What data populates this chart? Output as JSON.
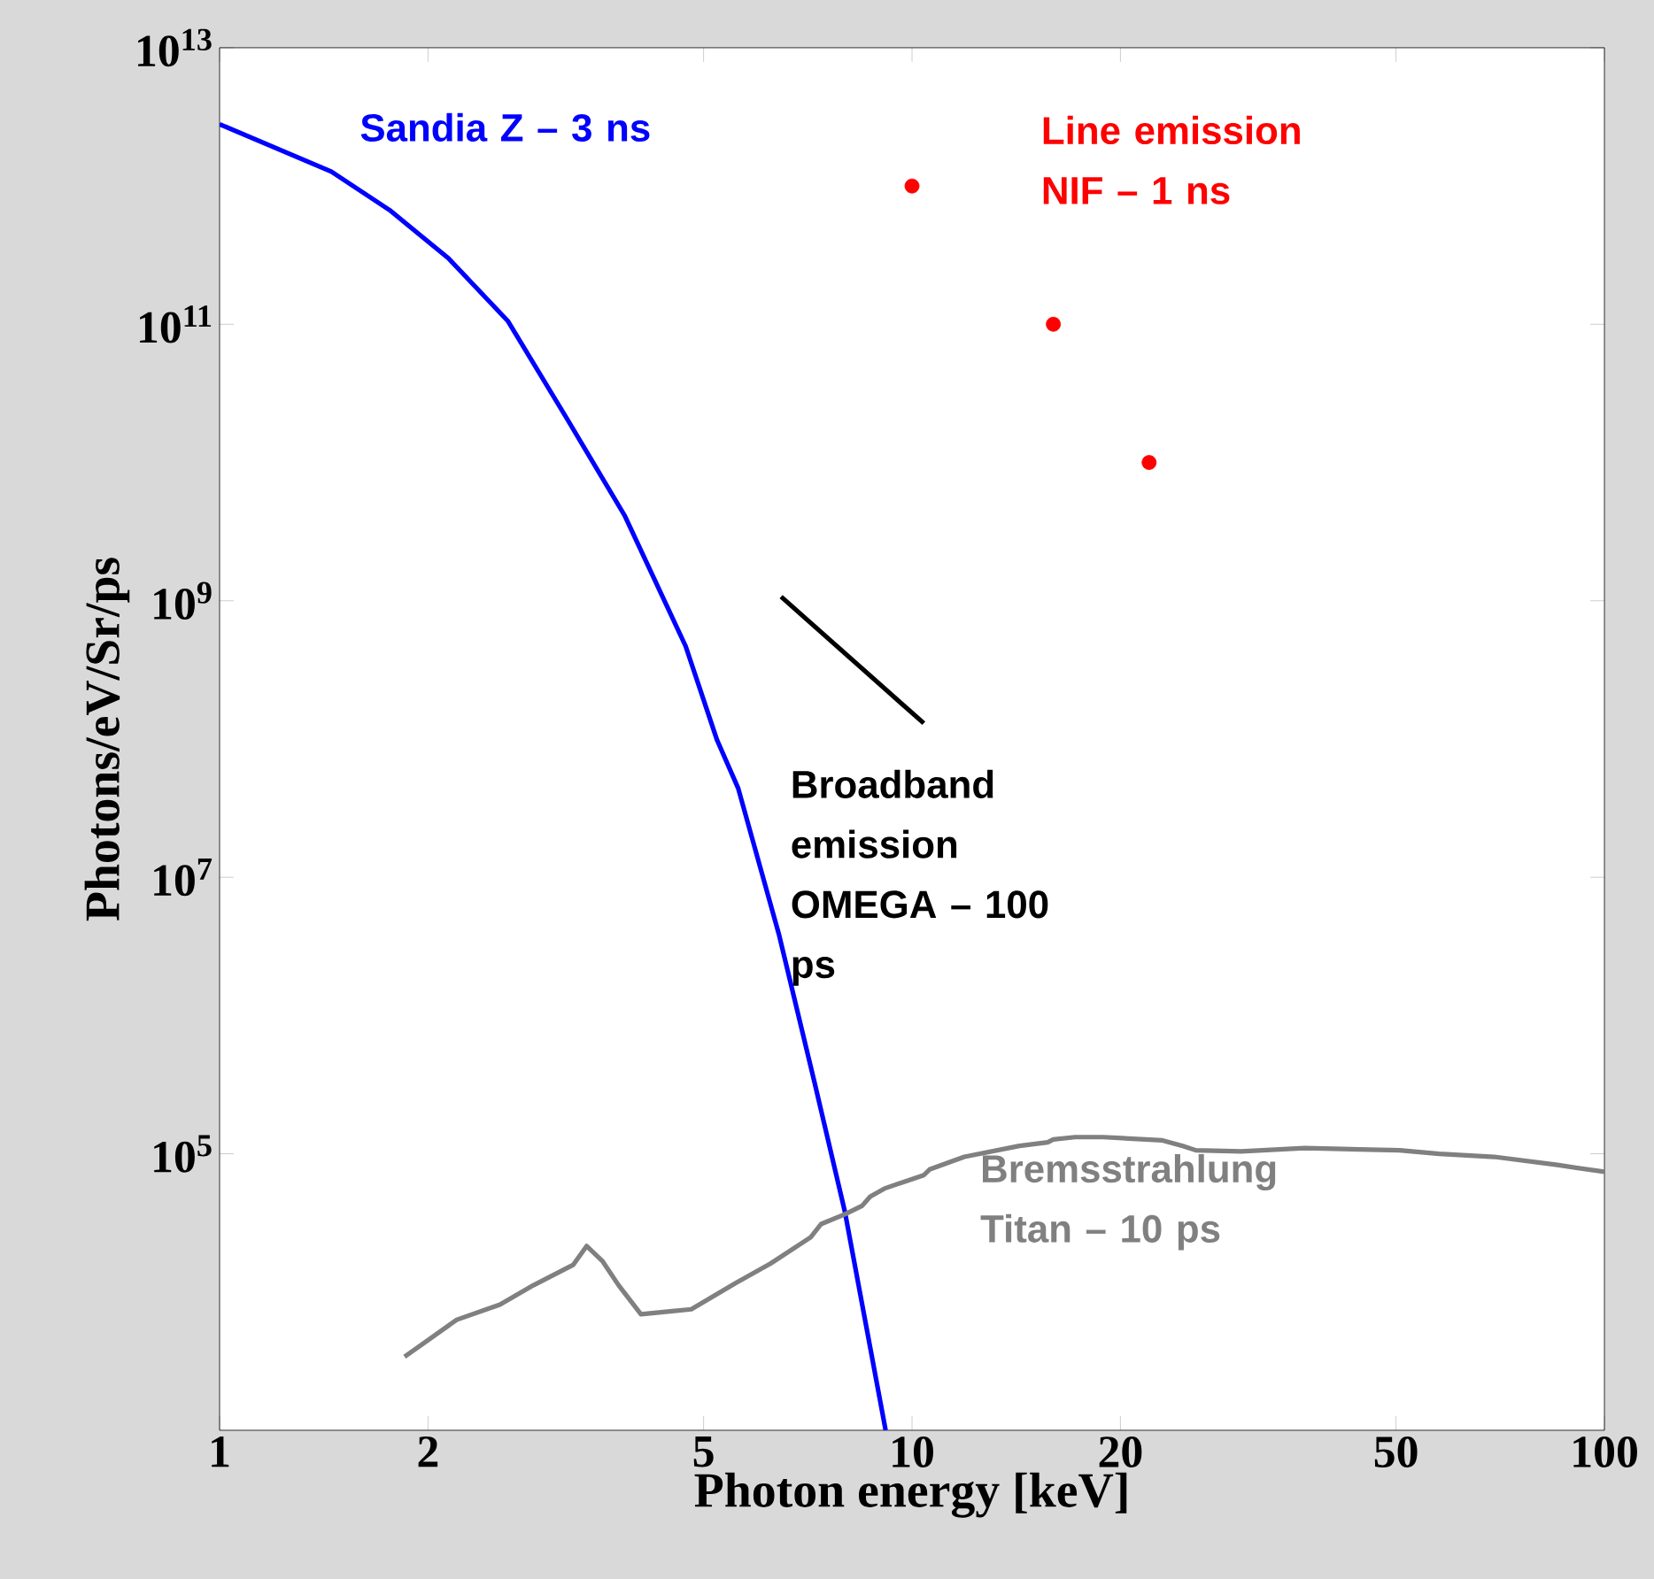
{
  "chart_data": {
    "type": "line",
    "xlabel": "Photon energy [keV]",
    "ylabel": "Photons/eV/Sr/ps",
    "log": "xy",
    "xlim": [
      1,
      100
    ],
    "ylim": [
      1000,
      10000000000000.0
    ],
    "xticks": [
      1,
      2,
      5,
      10,
      20,
      50,
      100
    ],
    "yticks": [
      {
        "value": 100000.0,
        "label": "10$^{5}$"
      },
      {
        "value": 10000000.0,
        "label": "10$^{7}$"
      },
      {
        "value": 1000000000.0,
        "label": "10$^{9}$"
      },
      {
        "value": 100000000000.0,
        "label": "10$^{11}$"
      },
      {
        "value": 10000000000000.0,
        "label": "10$^{13}$"
      }
    ],
    "grid": false,
    "legend": false,
    "series": [
      {
        "name": "Sandia Z – 3 ns",
        "color": "#0000ff",
        "x": [
          1,
          1.45,
          1.76,
          2.14,
          2.61,
          3.17,
          3.85,
          4.71,
          5.23,
          5.61,
          6.43,
          7.23,
          8.0,
          9.16
        ],
        "values": [
          2800000000000.0,
          1270000000000.0,
          670000000000.0,
          300000000000.0,
          105000000000.0,
          21000000000.0,
          4100000000.0,
          470000000.0,
          98000000.0,
          44000000.0,
          3800000.0,
          330000.0,
          38000.0,
          1000
        ]
      },
      {
        "name": "Line emission NIF – 1 ns",
        "type": "scatter",
        "marker": "circle",
        "color": "#ff0000",
        "x": [
          10,
          16,
          22
        ],
        "values": [
          1000000000000.0,
          100000000000.0,
          10000000000.0
        ]
      },
      {
        "name": "Broadband emission OMEGA – 100 ps",
        "color": "#000000",
        "x": [
          6.47,
          10.4
        ],
        "values": [
          1070000000.0,
          130000000.0
        ]
      },
      {
        "name": "Bremsstrahlung Titan – 10 ps",
        "color": "#808080",
        "x": [
          1.85,
          2.2,
          2.54,
          2.84,
          3.24,
          3.39,
          3.57,
          3.77,
          4.06,
          4.8,
          5.56,
          6.25,
          7.14,
          7.39,
          8.0,
          8.47,
          8.7,
          9.12,
          10.4,
          10.6,
          11.9,
          14.3,
          15.7,
          16.0,
          17.2,
          18.9,
          23.0,
          24.6,
          25.7,
          29.9,
          36.9,
          50.6,
          57.7,
          69.3,
          85.5,
          100
        ],
        "values": [
          3400.0,
          6300.0,
          8100.0,
          11200.0,
          15700.0,
          21500.0,
          16800.0,
          11200.0,
          6900.0,
          7500.0,
          11600.0,
          16100.0,
          24900.0,
          31000.0,
          36500.0,
          42000.0,
          49000.0,
          56000.0,
          70000.0,
          77000.0,
          95000.0,
          114000.0,
          121000.0,
          127000.0,
          132000.0,
          132000.0,
          125000.0,
          114000.0,
          106000.0,
          104000.0,
          110000.0,
          106000.0,
          100000.0,
          95000.0,
          83000.0,
          74000.0
        ]
      }
    ]
  }
}
